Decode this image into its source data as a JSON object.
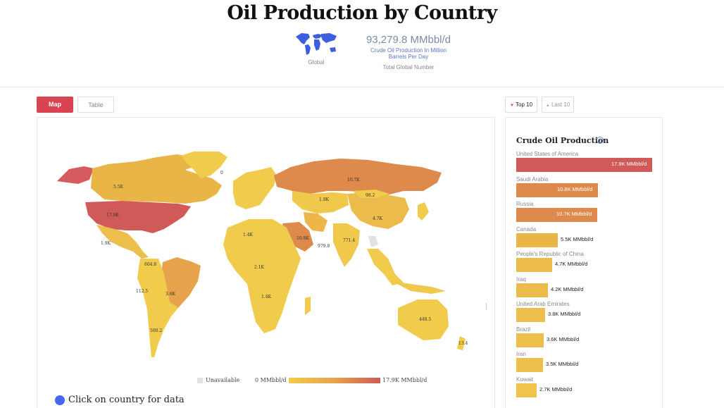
{
  "header": {
    "title": "Oil Production by Country",
    "globe_label": "Global",
    "global_number": "93,279.8 MMbbl/d",
    "unit_description": "Crude Oil Production In Million Barrels Per Day",
    "total_label": "Total Global Number"
  },
  "tabs": [
    {
      "label": "Map",
      "active": true
    },
    {
      "label": "Table",
      "active": false
    }
  ],
  "ranking_buttons": [
    {
      "label": "Top 10",
      "active": true
    },
    {
      "label": "Last 10",
      "active": false
    }
  ],
  "map": {
    "legend": {
      "unavailable": "Unavailable",
      "min": "0 MMbbl/d",
      "max": "17.9K MMbbl/d"
    },
    "click_hint": "Click on country for data",
    "labels": [
      {
        "text": "5.5K"
      },
      {
        "text": "17.9K"
      },
      {
        "text": "1.9K"
      },
      {
        "text": "10.7K"
      },
      {
        "text": "3.6K"
      },
      {
        "text": "10.8K"
      },
      {
        "text": "4.7K"
      },
      {
        "text": "448.5"
      },
      {
        "text": "604.8"
      },
      {
        "text": "112.5"
      },
      {
        "text": "500.2"
      },
      {
        "text": "1.4K"
      },
      {
        "text": "2.1K"
      },
      {
        "text": "1.4K"
      },
      {
        "text": "979.8"
      },
      {
        "text": "771.4"
      },
      {
        "text": "1.9K"
      },
      {
        "text": "98.2"
      },
      {
        "text": "13.4"
      },
      {
        "text": "0"
      }
    ]
  },
  "ranking": {
    "title": "Crude Oil Production",
    "max_value": 17.9,
    "rows": [
      {
        "country": "United States of America",
        "value": 17.9,
        "label": "17.9K MMbbl/d",
        "color": "#cf5a58"
      },
      {
        "country": "Saudi Arabia",
        "value": 10.8,
        "label": "10.8K MMbbl/d",
        "color": "#de8a4d"
      },
      {
        "country": "Russia",
        "value": 10.7,
        "label": "10.7K MMbbl/d",
        "color": "#de8a4d"
      },
      {
        "country": "Canada",
        "value": 5.5,
        "label": "5.5K MMbbl/d",
        "color": "#e9b546"
      },
      {
        "country": "People's Republic of China",
        "value": 4.7,
        "label": "4.7K MMbbl/d",
        "color": "#ebbb4b"
      },
      {
        "country": "Iraq",
        "value": 4.2,
        "label": "4.2K MMbbl/d",
        "color": "#ebbb4b"
      },
      {
        "country": "United Arab Emirates",
        "value": 3.8,
        "label": "3.8K MMbbl/d",
        "color": "#ecbe4c"
      },
      {
        "country": "Brazil",
        "value": 3.6,
        "label": "3.6K MMbbl/d",
        "color": "#ecbe4c"
      },
      {
        "country": "Iran",
        "value": 3.5,
        "label": "3.5K MMbbl/d",
        "color": "#edc04c"
      },
      {
        "country": "Kuwait",
        "value": 2.7,
        "label": "2.7K MMbbl/d",
        "color": "#efc34c"
      }
    ]
  },
  "colors": {
    "accent": "#d94452",
    "scale_low": "#f1cb4c",
    "scale_mid": "#e6a34b",
    "scale_high": "#cf5a58",
    "unavailable": "#e2e2e2",
    "link_blue": "#4766f0"
  }
}
